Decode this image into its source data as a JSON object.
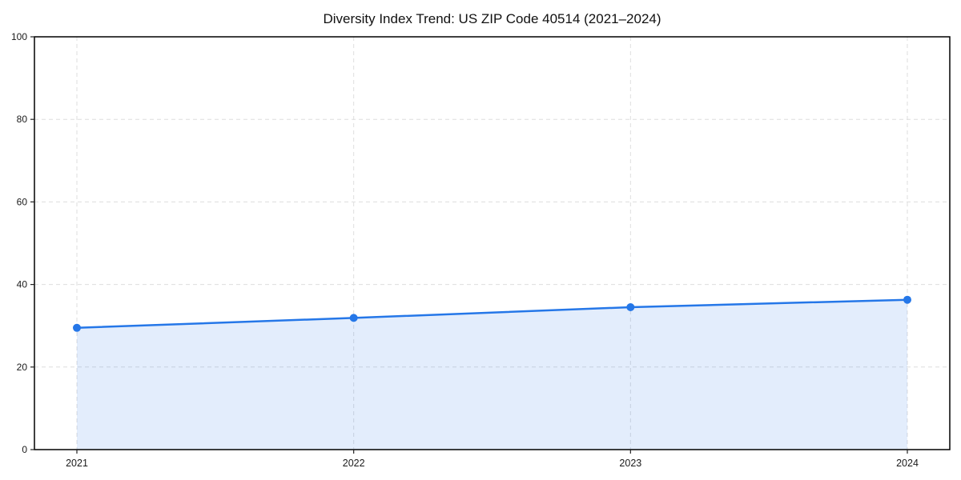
{
  "chart_data": {
    "type": "line",
    "title": "Diversity Index Trend: US ZIP Code 40514 (2021–2024)",
    "x": [
      "2021",
      "2022",
      "2023",
      "2024"
    ],
    "series": [
      {
        "name": "Diversity Index",
        "values": [
          29.5,
          31.9,
          34.5,
          36.3
        ]
      }
    ],
    "xlabel": "",
    "ylabel": "",
    "ylim": [
      0,
      100
    ],
    "yticks": [
      0,
      20,
      40,
      60,
      80,
      100
    ],
    "grid": "dashed",
    "legend": "none",
    "marker": "circle",
    "area_fill": true,
    "colors": {
      "line": "#2577e8",
      "fill": "rgba(37,119,232,0.13)",
      "grid": "#dedede",
      "spine": "#000000",
      "tick": "#222222",
      "text": "#1a1a1a"
    }
  }
}
